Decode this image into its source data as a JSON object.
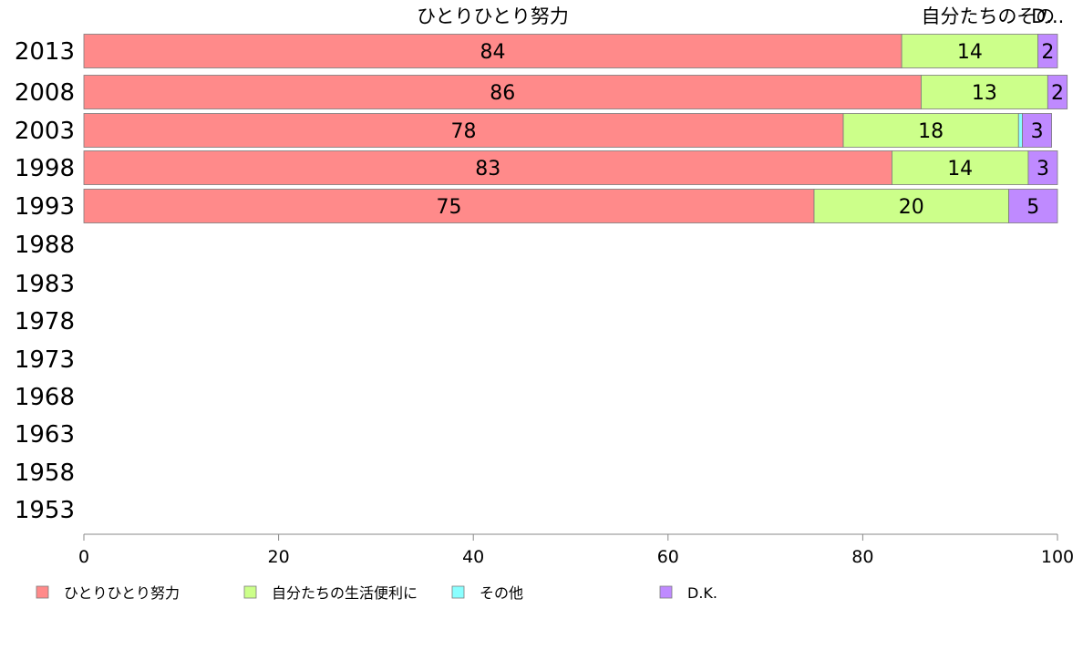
{
  "colors": {
    "series": [
      "#ff8a8a",
      "#ccff8a",
      "#8affff",
      "#bf8aff"
    ],
    "axis": "#888888",
    "bar_stroke": "#7a7a7a"
  },
  "chart_data": {
    "type": "bar",
    "orientation": "horizontal",
    "stacked": true,
    "categories": [
      "2013",
      "2008",
      "2003",
      "1998",
      "1993",
      "1988",
      "1983",
      "1978",
      "1973",
      "1968",
      "1963",
      "1958",
      "1953"
    ],
    "series": [
      {
        "name": "ひとりひとり努力",
        "values": [
          84,
          86,
          78,
          83,
          75,
          null,
          null,
          null,
          null,
          null,
          null,
          null,
          null
        ]
      },
      {
        "name": "自分たちの生活便利に",
        "values": [
          14,
          13,
          18,
          14,
          20,
          null,
          null,
          null,
          null,
          null,
          null,
          null,
          null
        ]
      },
      {
        "name": "その他",
        "values": [
          0,
          0,
          0.4,
          0,
          0,
          null,
          null,
          null,
          null,
          null,
          null,
          null,
          null
        ]
      },
      {
        "name": "D.K.",
        "values": [
          2,
          2,
          3,
          3,
          5,
          null,
          null,
          null,
          null,
          null,
          null,
          null,
          null
        ]
      }
    ],
    "data_labels": [
      [
        "84",
        "14",
        "",
        "2"
      ],
      [
        "86",
        "13",
        "",
        "2"
      ],
      [
        "78",
        "18",
        "",
        "3"
      ],
      [
        "83",
        "14",
        "",
        "3"
      ],
      [
        "75",
        "20",
        "",
        "5"
      ]
    ],
    "top_labels": [
      "ひとりひとり努力",
      "自分たちの",
      "その",
      "D..."
    ],
    "xlim": [
      0,
      100
    ],
    "xticks": [
      "0",
      "20",
      "40",
      "60",
      "80",
      "100"
    ],
    "grid": false,
    "legend_position": "bottom"
  }
}
